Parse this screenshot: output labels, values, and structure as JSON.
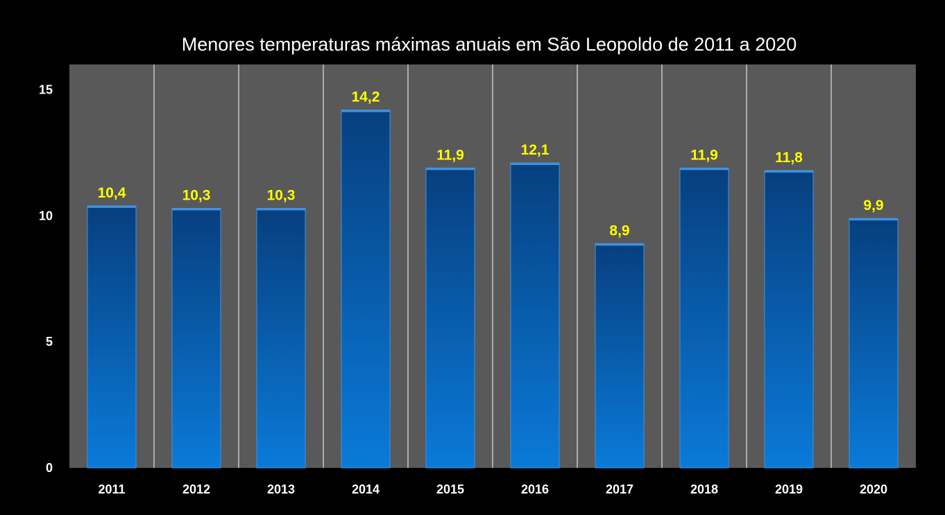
{
  "colors": {
    "page_background": "#000000",
    "plot_background": "#595959",
    "gridline": "#ffffff",
    "bar_top": "#073f7e",
    "bar_bottom": "#0a7ad9",
    "bar_edge": "#3f93e0",
    "data_label": "#ffff00",
    "text": "#ffffff"
  },
  "chart_data": {
    "type": "bar",
    "title": "Menores temperaturas máximas anuais em São Leopoldo de 2011 a 2020",
    "xlabel": "",
    "ylabel": "",
    "categories": [
      "2011",
      "2012",
      "2013",
      "2014",
      "2015",
      "2016",
      "2017",
      "2018",
      "2019",
      "2020"
    ],
    "values": [
      10.4,
      10.3,
      10.3,
      14.2,
      11.9,
      12.1,
      8.9,
      11.9,
      11.8,
      9.9
    ],
    "data_labels": [
      "10,4",
      "10,3",
      "10,3",
      "14,2",
      "11,9",
      "12,1",
      "8,9",
      "11,9",
      "11,8",
      "9,9"
    ],
    "ylim": [
      0,
      16
    ],
    "yticks": [
      0,
      5,
      10,
      15
    ],
    "ytick_labels": [
      "0",
      "5",
      "10",
      "15"
    ],
    "grid": "vertical lines between categories",
    "legend": "none"
  }
}
